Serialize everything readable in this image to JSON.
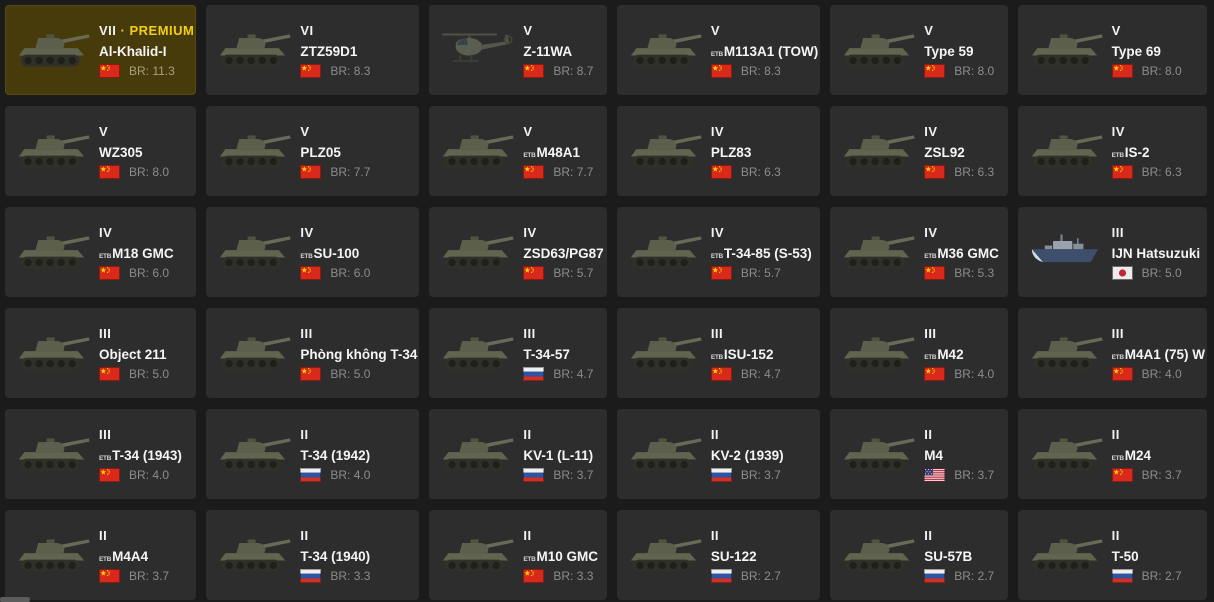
{
  "labels": {
    "premium_separator": "·"
  },
  "colors": {
    "page_bg": "#1b1b1b",
    "card_bg": "#2d2d2d",
    "selected_card_bg": "#473b0b",
    "premium_text": "#f2cf16",
    "name_text": "#f5f5f5",
    "br_text": "#8c8c8c"
  },
  "cards": [
    {
      "rank": "VII",
      "premium": true,
      "premium_label": "PREMIUM",
      "prefix": "",
      "name": "Al-Khalid-I",
      "flag": "china",
      "vehicle": "tank",
      "br": "BR: 11.3",
      "selected": true
    },
    {
      "rank": "VI",
      "premium": false,
      "prefix": "",
      "name": "ZTZ59D1",
      "flag": "china",
      "vehicle": "tank",
      "br": "BR: 8.3",
      "selected": false
    },
    {
      "rank": "V",
      "premium": false,
      "prefix": "",
      "name": "Z-11WA",
      "flag": "china",
      "vehicle": "helicopter",
      "br": "BR: 8.7",
      "selected": false
    },
    {
      "rank": "V",
      "premium": false,
      "prefix": "ETB",
      "name": "M113A1 (TOW)",
      "flag": "china",
      "vehicle": "tank",
      "br": "BR: 8.3",
      "selected": false
    },
    {
      "rank": "V",
      "premium": false,
      "prefix": "",
      "name": "Type 59",
      "flag": "china",
      "vehicle": "tank",
      "br": "BR: 8.0",
      "selected": false
    },
    {
      "rank": "V",
      "premium": false,
      "prefix": "",
      "name": "Type 69",
      "flag": "china",
      "vehicle": "tank",
      "br": "BR: 8.0",
      "selected": false
    },
    {
      "rank": "V",
      "premium": false,
      "prefix": "",
      "name": "WZ305",
      "flag": "china",
      "vehicle": "tank",
      "br": "BR: 8.0",
      "selected": false
    },
    {
      "rank": "V",
      "premium": false,
      "prefix": "",
      "name": "PLZ05",
      "flag": "china",
      "vehicle": "tank",
      "br": "BR: 7.7",
      "selected": false
    },
    {
      "rank": "V",
      "premium": false,
      "prefix": "ETB",
      "name": "M48A1",
      "flag": "china",
      "vehicle": "tank",
      "br": "BR: 7.7",
      "selected": false
    },
    {
      "rank": "IV",
      "premium": false,
      "prefix": "",
      "name": "PLZ83",
      "flag": "china",
      "vehicle": "tank",
      "br": "BR: 6.3",
      "selected": false
    },
    {
      "rank": "IV",
      "premium": false,
      "prefix": "",
      "name": "ZSL92",
      "flag": "china",
      "vehicle": "tank",
      "br": "BR: 6.3",
      "selected": false
    },
    {
      "rank": "IV",
      "premium": false,
      "prefix": "ETB",
      "name": "IS-2",
      "flag": "china",
      "vehicle": "tank",
      "br": "BR: 6.3",
      "selected": false
    },
    {
      "rank": "IV",
      "premium": false,
      "prefix": "ETB",
      "name": "M18 GMC",
      "flag": "china",
      "vehicle": "tank",
      "br": "BR: 6.0",
      "selected": false
    },
    {
      "rank": "IV",
      "premium": false,
      "prefix": "ETB",
      "name": "SU-100",
      "flag": "china",
      "vehicle": "tank",
      "br": "BR: 6.0",
      "selected": false
    },
    {
      "rank": "IV",
      "premium": false,
      "prefix": "",
      "name": "ZSD63/PG87",
      "flag": "china",
      "vehicle": "tank",
      "br": "BR: 5.7",
      "selected": false
    },
    {
      "rank": "IV",
      "premium": false,
      "prefix": "ETB",
      "name": "T-34-85 (S-53)",
      "flag": "china",
      "vehicle": "tank",
      "br": "BR: 5.7",
      "selected": false
    },
    {
      "rank": "IV",
      "premium": false,
      "prefix": "ETB",
      "name": "M36 GMC",
      "flag": "china",
      "vehicle": "tank",
      "br": "BR: 5.3",
      "selected": false
    },
    {
      "rank": "III",
      "premium": false,
      "prefix": "",
      "name": "IJN Hatsuzuki",
      "flag": "japan",
      "vehicle": "ship",
      "br": "BR: 5.0",
      "selected": false
    },
    {
      "rank": "III",
      "premium": false,
      "prefix": "",
      "name": "Object 211",
      "flag": "china",
      "vehicle": "tank",
      "br": "BR: 5.0",
      "selected": false
    },
    {
      "rank": "III",
      "premium": false,
      "prefix": "",
      "name": "Phòng không T-34",
      "flag": "china",
      "vehicle": "tank",
      "br": "BR: 5.0",
      "selected": false
    },
    {
      "rank": "III",
      "premium": false,
      "prefix": "",
      "name": "T-34-57",
      "flag": "russia",
      "vehicle": "tank",
      "br": "BR: 4.7",
      "selected": false
    },
    {
      "rank": "III",
      "premium": false,
      "prefix": "ETB",
      "name": "ISU-152",
      "flag": "china",
      "vehicle": "tank",
      "br": "BR: 4.7",
      "selected": false
    },
    {
      "rank": "III",
      "premium": false,
      "prefix": "ETB",
      "name": "M42",
      "flag": "china",
      "vehicle": "tank",
      "br": "BR: 4.0",
      "selected": false
    },
    {
      "rank": "III",
      "premium": false,
      "prefix": "ETB",
      "name": "M4A1 (75) W",
      "flag": "china",
      "vehicle": "tank",
      "br": "BR: 4.0",
      "selected": false
    },
    {
      "rank": "III",
      "premium": false,
      "prefix": "ETB",
      "name": "T-34 (1943)",
      "flag": "china",
      "vehicle": "tank",
      "br": "BR: 4.0",
      "selected": false
    },
    {
      "rank": "II",
      "premium": false,
      "prefix": "",
      "name": "T-34 (1942)",
      "flag": "russia",
      "vehicle": "tank",
      "br": "BR: 4.0",
      "selected": false
    },
    {
      "rank": "II",
      "premium": false,
      "prefix": "",
      "name": "KV-1 (L-11)",
      "flag": "russia",
      "vehicle": "tank",
      "br": "BR: 3.7",
      "selected": false
    },
    {
      "rank": "II",
      "premium": false,
      "prefix": "",
      "name": "KV-2 (1939)",
      "flag": "russia",
      "vehicle": "tank",
      "br": "BR: 3.7",
      "selected": false
    },
    {
      "rank": "II",
      "premium": false,
      "prefix": "",
      "name": "M4",
      "flag": "usa",
      "vehicle": "tank",
      "br": "BR: 3.7",
      "selected": false
    },
    {
      "rank": "II",
      "premium": false,
      "prefix": "ETB",
      "name": "M24",
      "flag": "china",
      "vehicle": "tank",
      "br": "BR: 3.7",
      "selected": false
    },
    {
      "rank": "II",
      "premium": false,
      "prefix": "ETB",
      "name": "M4A4",
      "flag": "china",
      "vehicle": "tank",
      "br": "BR: 3.7",
      "selected": false
    },
    {
      "rank": "II",
      "premium": false,
      "prefix": "",
      "name": "T-34 (1940)",
      "flag": "russia",
      "vehicle": "tank",
      "br": "BR: 3.3",
      "selected": false
    },
    {
      "rank": "II",
      "premium": false,
      "prefix": "ETB",
      "name": "M10 GMC",
      "flag": "china",
      "vehicle": "tank",
      "br": "BR: 3.3",
      "selected": false
    },
    {
      "rank": "II",
      "premium": false,
      "prefix": "",
      "name": "SU-122",
      "flag": "russia",
      "vehicle": "tank",
      "br": "BR: 2.7",
      "selected": false
    },
    {
      "rank": "II",
      "premium": false,
      "prefix": "",
      "name": "SU-57B",
      "flag": "russia",
      "vehicle": "tank",
      "br": "BR: 2.7",
      "selected": false
    },
    {
      "rank": "II",
      "premium": false,
      "prefix": "",
      "name": "T-50",
      "flag": "russia",
      "vehicle": "tank",
      "br": "BR: 2.7",
      "selected": false
    }
  ]
}
